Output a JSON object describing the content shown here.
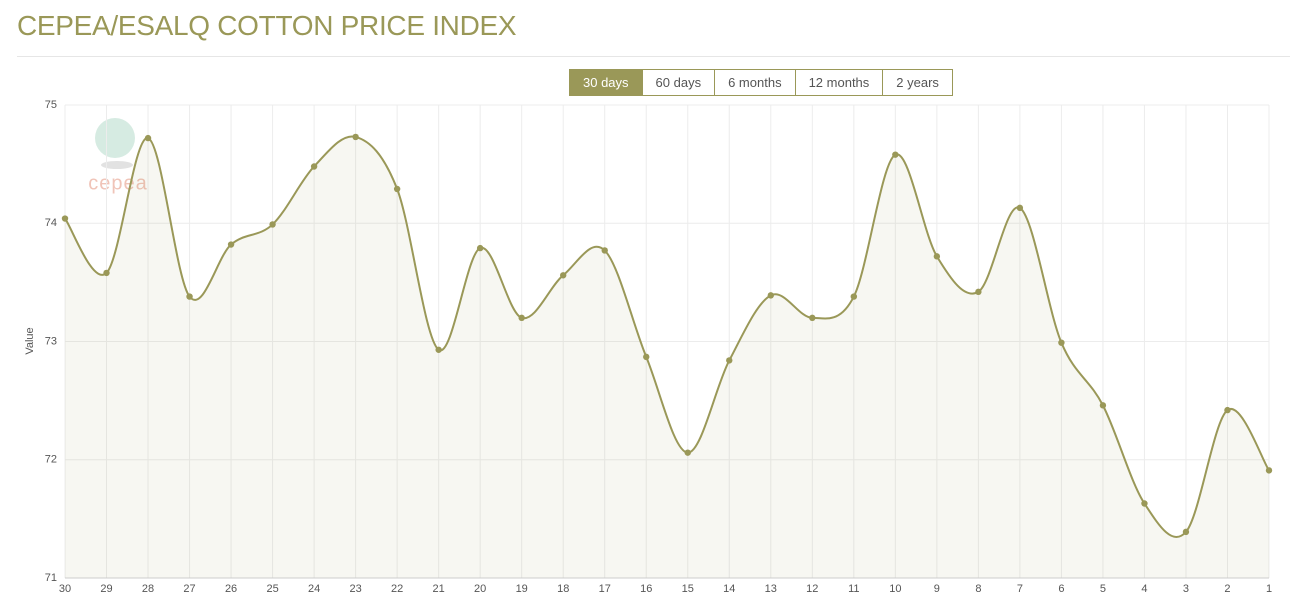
{
  "logo": "cepea",
  "range_buttons": [
    {
      "label": "30 days",
      "selected": true
    },
    {
      "label": "60 days",
      "selected": false
    },
    {
      "label": "6 months",
      "selected": false
    },
    {
      "label": "12 months",
      "selected": false
    },
    {
      "label": "2 years",
      "selected": false
    }
  ],
  "chart_data": {
    "type": "line",
    "title": "CEPEA/ESALQ COTTON PRICE INDEX",
    "y_label": "Value",
    "categories": [
      "30",
      "29",
      "28",
      "27",
      "26",
      "25",
      "24",
      "23",
      "22",
      "21",
      "20",
      "19",
      "18",
      "17",
      "16",
      "15",
      "14",
      "13",
      "12",
      "11",
      "10",
      "9",
      "8",
      "7",
      "6",
      "5",
      "4",
      "3",
      "2",
      "1"
    ],
    "values": [
      74.04,
      73.58,
      74.72,
      73.38,
      73.82,
      73.99,
      74.48,
      74.73,
      74.29,
      72.93,
      73.79,
      73.2,
      73.56,
      73.77,
      72.87,
      72.06,
      72.84,
      73.39,
      73.2,
      73.38,
      74.58,
      73.72,
      73.42,
      74.13,
      72.99,
      72.46,
      71.63,
      71.39,
      72.42,
      71.91
    ],
    "color": "#9a9858",
    "ylim": [
      71,
      75
    ],
    "yticks": [
      71,
      72,
      73,
      74,
      75
    ],
    "grid": true
  }
}
